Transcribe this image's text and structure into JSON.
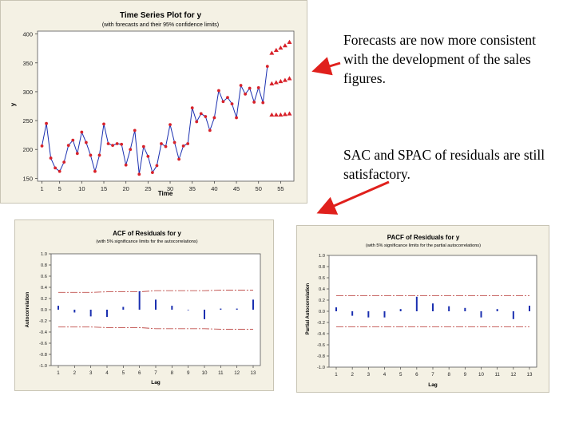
{
  "notes": {
    "forecast_text": "Forecasts are now more consistent with the development of the sales figures.",
    "residual_text": "SAC and SPAC of residuals are still satisfactory."
  },
  "colors": {
    "panel_bg": "#f4f1e4",
    "plot_bg": "#ffffff",
    "series_line": "#1a2fb0",
    "series_marker": "#d8222a",
    "conf_limit": "#c0504d",
    "bar": "#1a2fb0",
    "arrow": "#e0201c"
  },
  "chart_data": [
    {
      "type": "line",
      "title": "Time Series Plot for y",
      "subtitle": "(with forecasts and their 95% confidence limits)",
      "xlabel": "Time",
      "ylabel": "y",
      "xlim": [
        0,
        58
      ],
      "ylim": [
        145,
        405
      ],
      "xticks": [
        1,
        5,
        10,
        15,
        20,
        25,
        30,
        35,
        40,
        45,
        50,
        55
      ],
      "yticks": [
        150,
        200,
        250,
        300,
        350,
        400
      ],
      "series": [
        {
          "name": "y",
          "x": [
            1,
            2,
            3,
            4,
            5,
            6,
            7,
            8,
            9,
            10,
            11,
            12,
            13,
            14,
            15,
            16,
            17,
            18,
            19,
            20,
            21,
            22,
            23,
            24,
            25,
            26,
            27,
            28,
            29,
            30,
            31,
            32,
            33,
            34,
            35,
            36,
            37,
            38,
            39,
            40,
            41,
            42,
            43,
            44,
            45,
            46,
            47,
            48,
            49,
            50,
            51,
            52
          ],
          "values": [
            206,
            245,
            185,
            168,
            162,
            178,
            207,
            216,
            193,
            230,
            212,
            190,
            162,
            190,
            244,
            210,
            207,
            210,
            209,
            173,
            200,
            233,
            157,
            205,
            188,
            160,
            172,
            210,
            205,
            243,
            212,
            183,
            206,
            210,
            272,
            248,
            262,
            257,
            233,
            255,
            302,
            283,
            290,
            279,
            255,
            311,
            296,
            306,
            282,
            307,
            281,
            344
          ]
        },
        {
          "name": "Upper 95% limit",
          "x": [
            53,
            54,
            55,
            56,
            57
          ],
          "values": [
            367,
            372,
            376,
            380,
            386
          ]
        },
        {
          "name": "Forecast",
          "x": [
            53,
            54,
            55,
            56,
            57
          ],
          "values": [
            314,
            316,
            318,
            320,
            323
          ]
        },
        {
          "name": "Lower 95% limit",
          "x": [
            53,
            54,
            55,
            56,
            57
          ],
          "values": [
            260,
            260,
            260,
            261,
            262
          ]
        }
      ]
    },
    {
      "type": "bar",
      "title": "ACF of Residuals for y",
      "subtitle": "(with 5% significance limits for the autocorrelations)",
      "xlabel": "Lag",
      "ylabel": "Autocorrelation",
      "ylim": [
        -1.0,
        1.0
      ],
      "yticks": [
        "1.0",
        "0.8",
        "0.6",
        "0.4",
        "0.2",
        "0.0",
        "-0.2",
        "-0.4",
        "-0.6",
        "-0.8",
        "-1.0"
      ],
      "categories": [
        1,
        2,
        3,
        4,
        5,
        6,
        7,
        8,
        9,
        10,
        11,
        12,
        13
      ],
      "values": [
        0.07,
        -0.05,
        -0.12,
        -0.13,
        0.05,
        0.33,
        0.18,
        0.07,
        -0.01,
        -0.17,
        0.02,
        0.02,
        0.18
      ],
      "significance_limits": {
        "upper": [
          0.31,
          0.31,
          0.31,
          0.32,
          0.32,
          0.32,
          0.34,
          0.34,
          0.34,
          0.34,
          0.35,
          0.35,
          0.35
        ],
        "lower": [
          -0.31,
          -0.31,
          -0.31,
          -0.32,
          -0.32,
          -0.32,
          -0.34,
          -0.34,
          -0.34,
          -0.34,
          -0.35,
          -0.35,
          -0.35
        ]
      }
    },
    {
      "type": "bar",
      "title": "PACF of Residuals for y",
      "subtitle": "(with 5% significance limits for the partial autocorrelations)",
      "xlabel": "Lag",
      "ylabel": "Partial Autocorrelation",
      "ylim": [
        -1.0,
        1.0
      ],
      "yticks": [
        "1.0",
        "0.8",
        "0.6",
        "0.4",
        "0.2",
        "0.0",
        "-0.2",
        "-0.4",
        "-0.6",
        "-0.8",
        "-1.0"
      ],
      "categories": [
        1,
        2,
        3,
        4,
        5,
        6,
        7,
        8,
        9,
        10,
        11,
        12,
        13
      ],
      "values": [
        0.07,
        -0.08,
        -0.11,
        -0.11,
        0.04,
        0.26,
        0.14,
        0.09,
        0.06,
        -0.11,
        0.04,
        -0.14,
        0.1
      ],
      "significance_limits": {
        "upper": [
          0.28,
          0.28,
          0.28,
          0.28,
          0.28,
          0.28,
          0.28,
          0.28,
          0.28,
          0.28,
          0.28,
          0.28,
          0.28
        ],
        "lower": [
          -0.28,
          -0.28,
          -0.28,
          -0.28,
          -0.28,
          -0.28,
          -0.28,
          -0.28,
          -0.28,
          -0.28,
          -0.28,
          -0.28,
          -0.28
        ]
      }
    }
  ]
}
